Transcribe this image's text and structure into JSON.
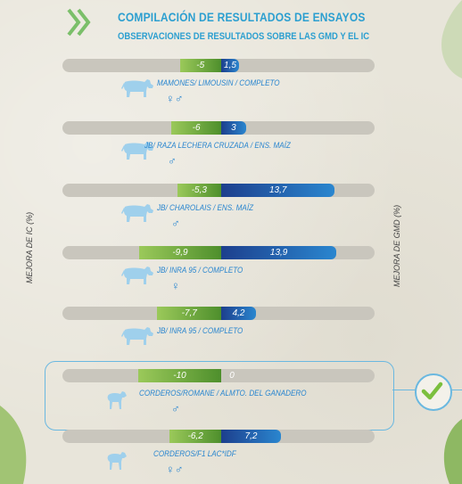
{
  "header": {
    "title": "COMPILACIÓN DE RESULTADOS DE ENSAYOS",
    "subtitle": "OBSERVACIONES DE RESULTADOS SOBRE LAS GMD Y EL IC"
  },
  "axis": {
    "left_label": "MEJORA DE IC (%)",
    "right_label": "MEJORA DE GMD (%)"
  },
  "colors": {
    "title": "#2c9fd0",
    "ic_bar": "#4e8f2c",
    "gmd_bar": "#1d3f8d",
    "track": "#c9c6bd",
    "highlight": "#6ab8e0"
  },
  "chart_data": {
    "type": "bar",
    "orientation": "horizontal-diverging",
    "series": [
      {
        "name": "",
        "values": [
          -5,
          -6,
          -5.3,
          -9.9,
          -7.7,
          -10,
          -6.2
        ]
      },
      {
        "name": "",
        "values": [
          1.5,
          3,
          13.7,
          13.9,
          4.2,
          0,
          7.2
        ]
      }
    ],
    "rows": [
      {
        "ic": -5,
        "ic_label": "-5",
        "gmd": 1.5,
        "gmd_label": "1,5",
        "label": "MAMONES/ LIMOUSIN / COMPLETO",
        "sex": "♀♂",
        "animal": "cow-icon",
        "highlight": false
      },
      {
        "ic": -6,
        "ic_label": "-6",
        "gmd": 3,
        "gmd_label": "3",
        "label": "JB/ RAZA LECHERA CRUZADA / ENS. MAÍZ",
        "sex": "♂",
        "animal": "cow-icon",
        "highlight": false
      },
      {
        "ic": -5.3,
        "ic_label": "-5,3",
        "gmd": 13.7,
        "gmd_label": "13,7",
        "label": "JB/ CHAROLAIS / ENS. MAÍZ",
        "sex": "♂",
        "animal": "cow-icon",
        "highlight": false
      },
      {
        "ic": -9.9,
        "ic_label": "-9,9",
        "gmd": 13.9,
        "gmd_label": "13,9",
        "label": "JB/ INRA 95 / COMPLETO",
        "sex": "♀",
        "animal": "cow-icon",
        "highlight": false
      },
      {
        "ic": -7.7,
        "ic_label": "-7,7",
        "gmd": 4.2,
        "gmd_label": "4,2",
        "label": "JB/ INRA 95 / COMPLETO",
        "sex": "",
        "animal": "cow-icon",
        "highlight": false
      },
      {
        "ic": -10,
        "ic_label": "-10",
        "gmd": 0,
        "gmd_label": "0",
        "label": "CORDEROS/ROMANE / ALMTO. DEL GANADERO",
        "sex": "♂",
        "animal": "sheep-icon",
        "highlight": true
      },
      {
        "ic": -6.2,
        "ic_label": "-6,2",
        "gmd": 7.2,
        "gmd_label": "7,2",
        "label": "CORDEROS/F1 LAC*IDF",
        "sex": "♀♂",
        "animal": "sheep-icon",
        "highlight": false
      }
    ],
    "xlim": [
      -14,
      14
    ]
  }
}
